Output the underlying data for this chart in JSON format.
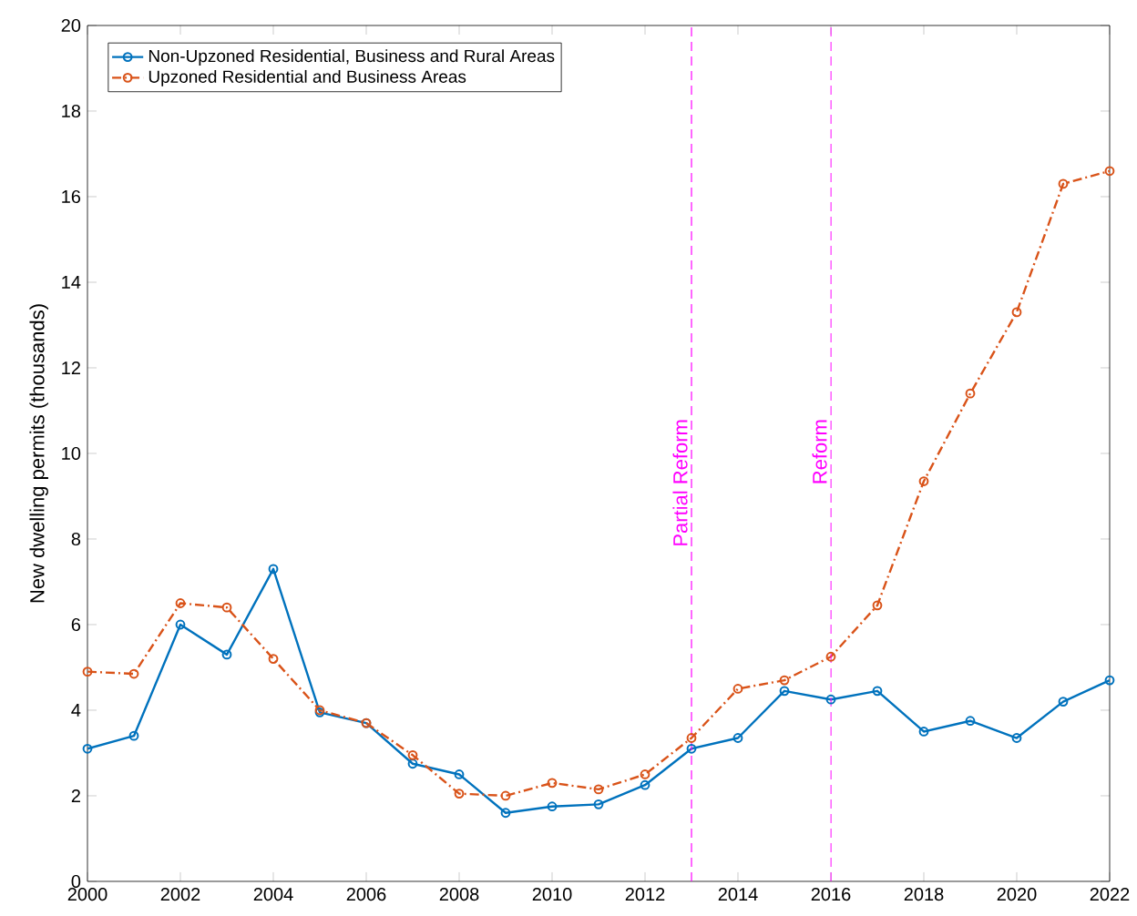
{
  "chart_data": {
    "type": "line",
    "ylabel": "New dwelling permits (thousands)",
    "x": [
      2000,
      2001,
      2002,
      2003,
      2004,
      2005,
      2006,
      2007,
      2008,
      2009,
      2010,
      2011,
      2012,
      2013,
      2014,
      2015,
      2016,
      2017,
      2018,
      2019,
      2020,
      2021,
      2022
    ],
    "series": [
      {
        "name": "Non-Upzoned Residential, Business and Rural Areas",
        "color": "#0072bd",
        "line_style": "solid",
        "values": [
          3.1,
          3.4,
          6.0,
          5.3,
          7.3,
          3.95,
          3.7,
          2.75,
          2.5,
          1.6,
          1.75,
          1.8,
          2.25,
          3.1,
          3.35,
          4.45,
          4.25,
          4.45,
          3.5,
          3.75,
          3.35,
          4.2,
          4.7
        ]
      },
      {
        "name": "Upzoned Residential and Business Areas",
        "color": "#d95319",
        "line_style": "dashed",
        "values": [
          4.9,
          4.85,
          6.5,
          6.4,
          5.2,
          4.0,
          3.7,
          2.95,
          2.05,
          2.0,
          2.3,
          2.15,
          2.5,
          3.35,
          4.5,
          4.7,
          5.25,
          6.45,
          9.35,
          11.4,
          13.3,
          16.3,
          16.6
        ]
      }
    ],
    "marker": "circle",
    "legend": "top left",
    "grid": false,
    "xlim": [
      2000,
      2022
    ],
    "xticks": [
      2000,
      2002,
      2004,
      2006,
      2008,
      2010,
      2012,
      2014,
      2016,
      2018,
      2020,
      2022
    ],
    "ylim": [
      0,
      20
    ],
    "yticks": [
      0,
      2,
      4,
      6,
      8,
      10,
      12,
      14,
      16,
      18,
      20
    ],
    "ref_lines": [
      {
        "axis": "x",
        "value": 2013,
        "label": "Partial Reform",
        "color": "#ff00ff",
        "line_style": "dashed"
      },
      {
        "axis": "x",
        "value": 2016,
        "label": "Reform",
        "color": "#ff00ff",
        "line_style": "dashed"
      }
    ]
  }
}
